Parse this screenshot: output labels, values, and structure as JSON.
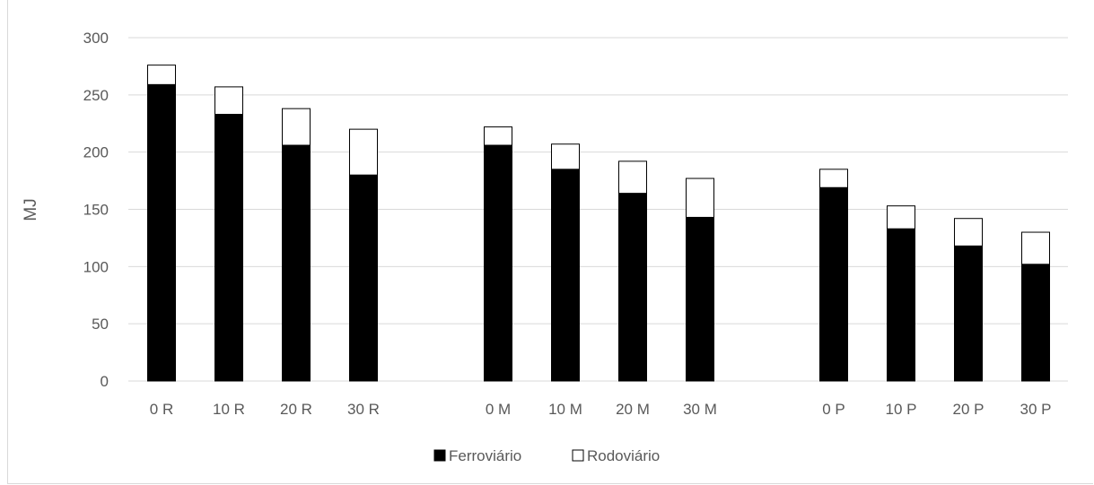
{
  "chart_data": {
    "type": "bar",
    "stacked": true,
    "categories": [
      "0 R",
      "10 R",
      "20 R",
      "30 R",
      "0 M",
      "10 M",
      "20 M",
      "30 M",
      "0 P",
      "10 P",
      "20 P",
      "30 P"
    ],
    "groups": [
      [
        "0 R",
        "10 R",
        "20 R",
        "30 R"
      ],
      [
        "0 M",
        "10 M",
        "20 M",
        "30 M"
      ],
      [
        "0 P",
        "10 P",
        "20 P",
        "30 P"
      ]
    ],
    "series": [
      {
        "name": "Ferroviário",
        "color": "#000000",
        "values": [
          259,
          233,
          206,
          180,
          206,
          185,
          164,
          143,
          169,
          133,
          118,
          102
        ]
      },
      {
        "name": "Rodoviário",
        "color": "#ffffff",
        "values": [
          17,
          24,
          32,
          40,
          16,
          22,
          28,
          34,
          16,
          20,
          24,
          28
        ]
      }
    ],
    "ylabel": "MJ",
    "xlabel": "",
    "title": "",
    "ylim": [
      0,
      300
    ],
    "yticks": [
      0,
      50,
      100,
      150,
      200,
      250,
      300
    ],
    "grid": true,
    "legend_position": "bottom"
  }
}
